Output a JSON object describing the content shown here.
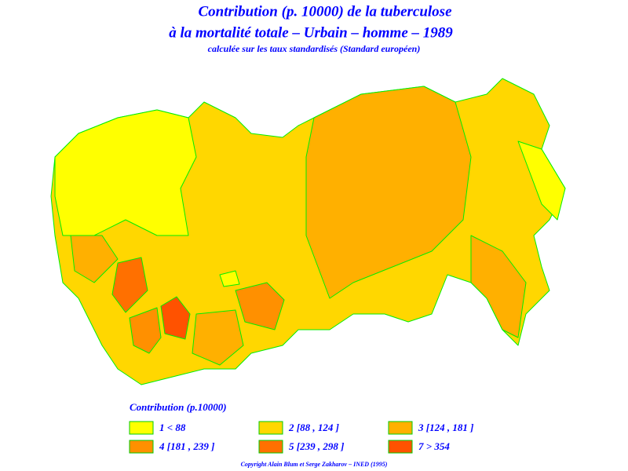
{
  "map": {
    "title": [
      "Contribution (p. 10000) de la tuberculose",
      "à la mortalité totale – Urbain – homme – 1989"
    ],
    "subtitle": "calculée sur les taux standardisés (Standard européen)",
    "legend": {
      "title": "Contribution (p.10000)",
      "items": [
        {
          "label": "1 < 88",
          "color": "#ffff00"
        },
        {
          "label": "2 [88 , 124 ]",
          "color": "#ffd700"
        },
        {
          "label": "3 [124 , 181 ]",
          "color": "#ffb000"
        },
        {
          "label": "4 [181 , 239 ]",
          "color": "#ff9000"
        },
        {
          "label": "5 [239 , 298 ]",
          "color": "#ff7000"
        },
        {
          "label": "7 > 354",
          "color": "#ff5200"
        }
      ]
    },
    "copyright": "Copyright Alain Blum et Serge Zakharov – INED (1995)"
  }
}
